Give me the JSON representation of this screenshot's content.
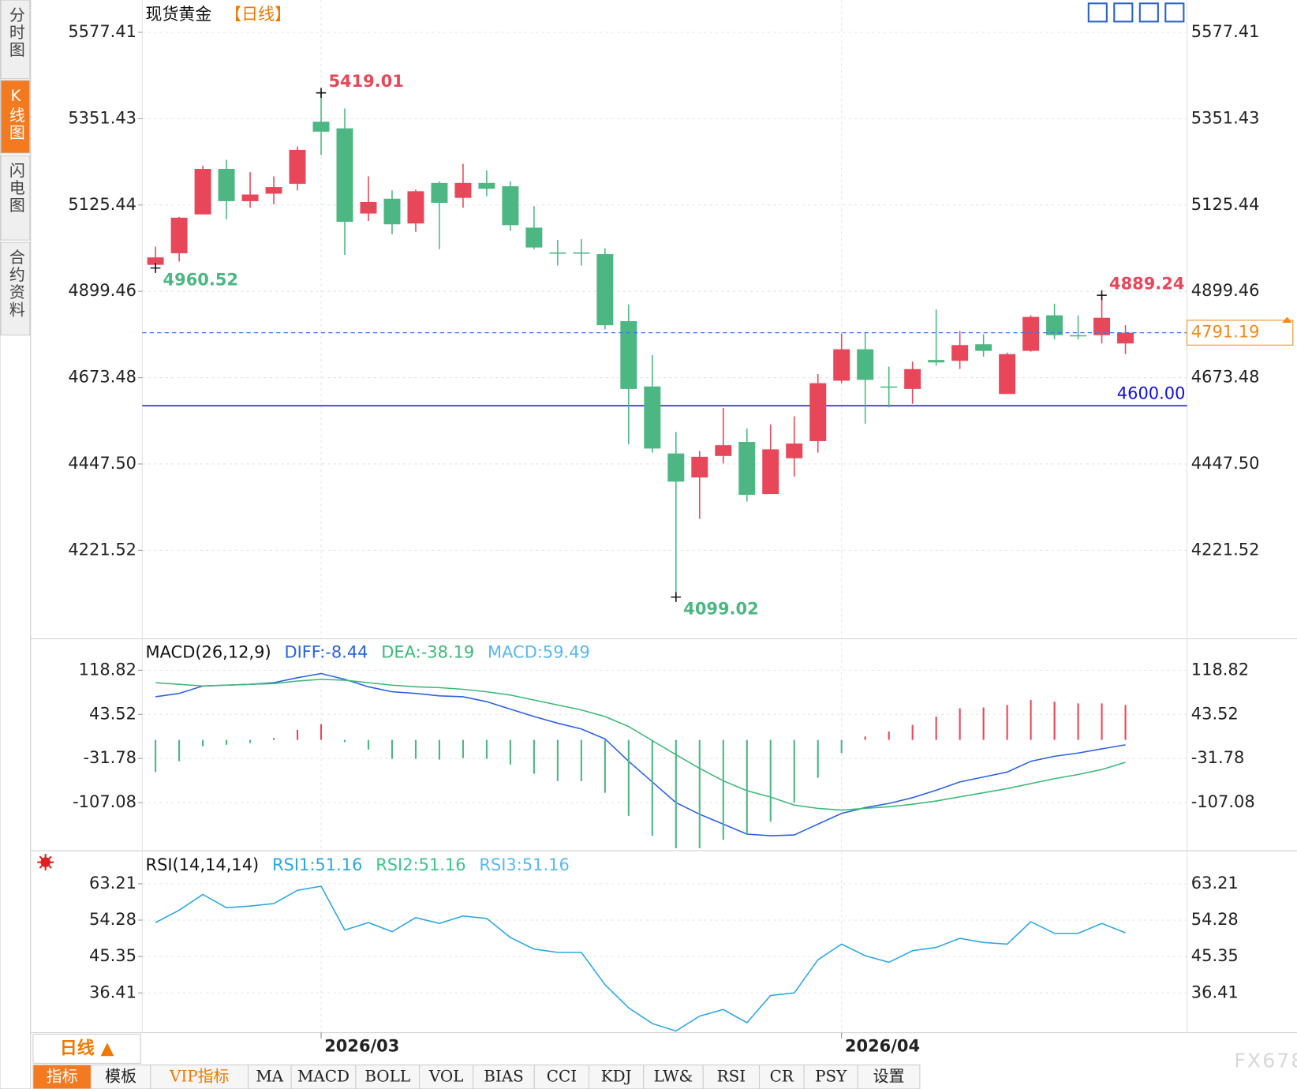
{
  "ui": {
    "sidebar": [
      "分时图",
      "K线图",
      "闪电图",
      "合约资料"
    ],
    "period": "日线 ▲",
    "tabs": [
      "指标",
      "模板",
      "VIP指标",
      "MA",
      "MACD",
      "BOLL",
      "VOL",
      "BIAS",
      "CCI",
      "KDJ",
      "LW&",
      "RSI",
      "CR",
      "PSY",
      "设置"
    ],
    "watermark": "FX678"
  },
  "chart_data": [
    {
      "type": "candlestick",
      "title": "现货黄金",
      "subtitle": "【日线】",
      "up_color": "#e8475a",
      "down_color": "#4cb783",
      "categories": [
        null,
        null,
        null,
        null,
        null,
        null,
        null,
        "2026/03",
        null,
        null,
        null,
        null,
        null,
        null,
        null,
        null,
        null,
        null,
        null,
        null,
        null,
        null,
        null,
        null,
        null,
        null,
        null,
        null,
        null,
        "2026/04",
        null,
        null,
        null,
        null,
        null,
        null,
        null,
        null,
        null,
        null,
        null,
        null
      ],
      "open": [
        4968.8,
        4999.1,
        5100.9,
        5220.0,
        5135.5,
        5155.0,
        5181.0,
        5343.5,
        5326.2,
        5103.1,
        5142.0,
        5077.1,
        5183.2,
        5144.2,
        5183.2,
        5174.5,
        5066.2,
        5001.2,
        5001.2,
        4996.9,
        4821.5,
        4650.4,
        4475.0,
        4412.1,
        4468.4,
        4505.3,
        4368.8,
        4462.5,
        4507.4,
        4665.5,
        4747.8,
        4650.4,
        4643.9,
        4719.8,
        4717.6,
        4760.9,
        4630.9,
        4743.6,
        4836.7,
        4784.7,
        4784.7,
        4763.0
      ],
      "high": [
        5016.4,
        5094.4,
        5228.7,
        5243.8,
        5211.3,
        5200.5,
        5278.5,
        5419.01,
        5378.1,
        5200.5,
        5163.7,
        5165.9,
        5187.5,
        5233.0,
        5215.7,
        5187.5,
        5122.5,
        5033.8,
        5036.0,
        5012.1,
        4864.8,
        4732.6,
        4531.2,
        4481.4,
        4594.0,
        4540.0,
        4550.7,
        4572.4,
        4682.8,
        4789.0,
        4793.3,
        4702.4,
        4715.4,
        4851.8,
        4795.5,
        4786.8,
        4739.2,
        4836.7,
        4867.0,
        4836.7,
        4889.24,
        4810.7
      ],
      "low": [
        4960.52,
        4977.4,
        5100.9,
        5087.9,
        5118.2,
        5126.9,
        5163.7,
        5256.8,
        4994.8,
        5083.6,
        5048.9,
        5055.4,
        5009.9,
        5118.2,
        5148.5,
        5057.6,
        5009.9,
        4966.6,
        4966.6,
        4799.8,
        4498.8,
        4477.1,
        4099.02,
        4303.8,
        4448.9,
        4349.4,
        4368.8,
        4414.2,
        4477.1,
        4659.0,
        4553.0,
        4596.2,
        4604.9,
        4704.5,
        4695.9,
        4728.5,
        4630.9,
        4741.4,
        4773.8,
        4773.8,
        4763.0,
        4735.0
      ],
      "close": [
        4988.3,
        5092.2,
        5220.0,
        5135.5,
        5152.9,
        5172.4,
        5269.8,
        5317.5,
        5081.4,
        5133.4,
        5074.9,
        5161.5,
        5131.2,
        5183.2,
        5168.0,
        5072.7,
        5014.2,
        4999.1,
        4999.1,
        4810.7,
        4643.9,
        4487.9,
        4401.3,
        4466.3,
        4496.6,
        4366.7,
        4485.8,
        4501.0,
        4659.0,
        4747.8,
        4667.7,
        4648.2,
        4695.9,
        4713.3,
        4758.8,
        4743.6,
        4734.9,
        4832.4,
        4784.7,
        4784.7,
        4830.2,
        4791.19
      ],
      "ylim": [
        3994.1,
        5661.9
      ],
      "yticks": [
        5577.41,
        5351.43,
        5125.44,
        4899.46,
        4673.48,
        {
          "value": 4447.5,
          "label": "4447.50"
        },
        4221.52
      ],
      "hlines": [
        {
          "value": 4600,
          "label": "4600.00",
          "color": "#1010e0"
        }
      ],
      "last_price_color": "#f08a1c",
      "last_line_color": "#3a78e6",
      "grid": true
    },
    {
      "type": "macd",
      "title": "MACD(26,12,9)",
      "ylim": [
        -187.58,
        168.24
      ],
      "yticks": [
        118.82,
        43.52,
        -31.78,
        -107.08
      ],
      "series": [
        {
          "name": "DIFF:-8.44",
          "color": "#2a62e0",
          "values": [
            73.6,
            79.3,
            92.0,
            93.4,
            94.8,
            97.6,
            106.1,
            113.2,
            103.3,
            90.6,
            82.1,
            79.3,
            75.1,
            73.6,
            65.2,
            52.5,
            39.8,
            28.5,
            18.6,
            1.7,
            -36.5,
            -71.8,
            -107.1,
            -126.9,
            -143.8,
            -160.8,
            -163.6,
            -162.2,
            -143.8,
            -125.5,
            -115.6,
            -108.5,
            -98.6,
            -85.9,
            -71.8,
            -63.3,
            -54.9,
            -36.5,
            -28.0,
            -22.4,
            -15.3,
            -8.44
          ]
        },
        {
          "name": "DEA:-38.19",
          "color": "#3cb878",
          "values": [
            97.6,
            94.8,
            92.0,
            93.4,
            94.8,
            96.2,
            100.5,
            103.3,
            101.9,
            97.6,
            93.4,
            90.6,
            89.2,
            86.3,
            82.1,
            76.5,
            68.0,
            59.5,
            51.1,
            39.8,
            22.8,
            -1.2,
            -25.2,
            -48.6,
            -69.8,
            -86.7,
            -97.5,
            -111.3,
            -116.9,
            -119.8,
            -116.9,
            -114.1,
            -109.9,
            -104.3,
            -97.2,
            -90.2,
            -83.1,
            -74.6,
            -66.2,
            -59.1,
            -50.6,
            -38.19
          ]
        },
        {
          "name": "MACD:59.49",
          "type": "bar",
          "color": "#5ab8f0",
          "up_color": "#e8475a",
          "down_color": "#4cb783",
          "values": [
            -54.9,
            -36.5,
            -11.1,
            -8.3,
            -5.4,
            3.0,
            17.2,
            27.0,
            -4.0,
            -16.7,
            -32.3,
            -32.3,
            -33.7,
            -30.9,
            -32.3,
            -42.2,
            -57.7,
            -70.4,
            -70.4,
            -90.2,
            -129.7,
            -163.6,
            -184.8,
            -184.8,
            -170.6,
            -160.8,
            -139.6,
            -107.1,
            -64.7,
            -22.4,
            5.8,
            14.3,
            25.6,
            39.7,
            53.9,
            55.3,
            59.5,
            68.0,
            65.2,
            62.3,
            62.3,
            59.49
          ]
        }
      ]
    },
    {
      "type": "line",
      "title": "RSI(14,14,14)",
      "ylim": [
        26.67,
        70.92
      ],
      "yticks": [
        63.21,
        54.28,
        45.35,
        36.41
      ],
      "series": [
        {
          "name": "RSI1:51.16",
          "color": "#2aa7e0",
          "values": [
            53.67,
            56.71,
            60.57,
            57.32,
            57.73,
            58.34,
            61.59,
            62.6,
            51.84,
            53.67,
            51.44,
            54.89,
            53.47,
            55.29,
            54.68,
            50.01,
            47.17,
            46.36,
            46.36,
            38.44,
            32.76,
            28.9,
            27.08,
            30.73,
            32.35,
            29.11,
            35.8,
            36.41,
            44.53,
            48.39,
            45.55,
            43.93,
            46.77,
            47.58,
            49.81,
            48.8,
            48.39,
            53.87,
            51.03,
            51.03,
            53.47,
            51.16
          ]
        },
        {
          "name": "RSI2:51.16",
          "color": "#3cc48a"
        },
        {
          "name": "RSI3:51.16",
          "color": "#5ab8f0"
        }
      ]
    }
  ]
}
